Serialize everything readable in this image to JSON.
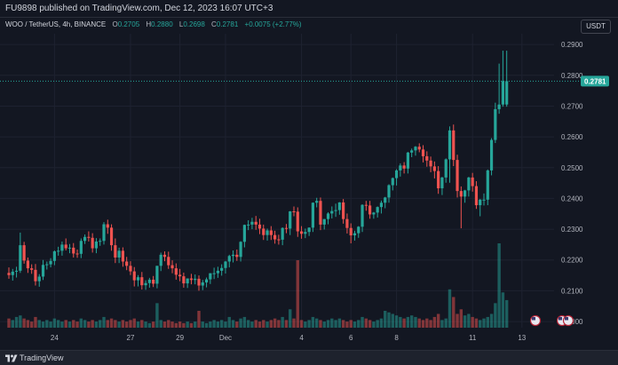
{
  "header": {
    "published_text": "FU9898 published on TradingView.com, Dec 12, 2023 16:07 UTC+3"
  },
  "legend": {
    "symbol": "WOO / TetherUS, 4h, BINANCE",
    "open_label": "O",
    "open_value": "0.2705",
    "high_label": "H",
    "high_value": "0.2880",
    "low_label": "L",
    "low_value": "0.2698",
    "close_label": "C",
    "close_value": "0.2781",
    "change_value": "+0.0075 (+2.77%)"
  },
  "currency": "USDT",
  "footer": {
    "brand": "TradingView",
    "logo_icon": "tradingview-logo-icon"
  },
  "colors": {
    "background": "#131722",
    "up": "#26a69a",
    "down": "#ef5350",
    "grid": "#1e2230",
    "axis_text": "#b2b5be",
    "price_tag": "#26a69a"
  },
  "chart_data": {
    "type": "candlestick",
    "title": "WOO / TetherUS, 4h, BINANCE",
    "xlabel": "",
    "ylabel": "",
    "ylim": [
      0.198,
      0.2935
    ],
    "grid": true,
    "y_ticks": [
      "0.2900",
      "0.2800",
      "0.2700",
      "0.2600",
      "0.2500",
      "0.2400",
      "0.2300",
      "0.2200",
      "0.2100",
      "0.2000"
    ],
    "y_tick_values": [
      0.29,
      0.28,
      0.27,
      0.26,
      0.25,
      0.24,
      0.23,
      0.22,
      0.21,
      0.2
    ],
    "x_ticks": [
      {
        "label": "24",
        "index": 12
      },
      {
        "label": "27",
        "index": 32
      },
      {
        "label": "29",
        "index": 45
      },
      {
        "label": "Dec",
        "index": 57
      },
      {
        "label": "4",
        "index": 77
      },
      {
        "label": "6",
        "index": 90
      },
      {
        "label": "8",
        "index": 102
      },
      {
        "label": "11",
        "index": 122
      },
      {
        "label": "13",
        "index": 135
      }
    ],
    "last_price": "0.2781",
    "last_price_value": 0.2781,
    "n_candles": 132,
    "candles": {
      "open": [
        0.2158,
        0.2151,
        0.2162,
        0.2165,
        0.2248,
        0.2198,
        0.2173,
        0.2168,
        0.2131,
        0.2146,
        0.2184,
        0.2186,
        0.2197,
        0.2228,
        0.223,
        0.225,
        0.2238,
        0.224,
        0.2221,
        0.222,
        0.2262,
        0.2275,
        0.2272,
        0.2238,
        0.226,
        0.2262,
        0.2316,
        0.2305,
        0.2248,
        0.2208,
        0.223,
        0.2195,
        0.2181,
        0.2163,
        0.2134,
        0.2144,
        0.2118,
        0.2125,
        0.2136,
        0.2123,
        0.2181,
        0.2217,
        0.221,
        0.2183,
        0.2173,
        0.2152,
        0.2147,
        0.2124,
        0.214,
        0.2135,
        0.2139,
        0.2117,
        0.2127,
        0.2137,
        0.2157,
        0.2157,
        0.2165,
        0.2174,
        0.2195,
        0.2213,
        0.2217,
        0.221,
        0.2259,
        0.2314,
        0.2315,
        0.2324,
        0.2315,
        0.2302,
        0.2281,
        0.2296,
        0.2281,
        0.2267,
        0.2266,
        0.2304,
        0.2302,
        0.2358,
        0.2357,
        0.2293,
        0.2285,
        0.2291,
        0.2305,
        0.2386,
        0.2392,
        0.2315,
        0.2333,
        0.2351,
        0.2359,
        0.2362,
        0.2387,
        0.2333,
        0.2304,
        0.228,
        0.2287,
        0.2308,
        0.2379,
        0.2377,
        0.2348,
        0.2354,
        0.2372,
        0.2386,
        0.2403,
        0.2443,
        0.2466,
        0.2491,
        0.2507,
        0.2497,
        0.2549,
        0.2556,
        0.2568,
        0.2559,
        0.2537,
        0.2523,
        0.2504,
        0.2489,
        0.2433,
        0.2468,
        0.2527,
        0.2621,
        0.2525,
        0.2424,
        0.2406,
        0.2426,
        0.2468,
        0.244,
        0.2378,
        0.2396,
        0.2396,
        0.2491,
        0.259,
        0.269,
        0.2705,
        0.2705
      ],
      "high": [
        0.2176,
        0.2171,
        0.2178,
        0.2289,
        0.2259,
        0.2208,
        0.2186,
        0.2187,
        0.2154,
        0.22,
        0.2195,
        0.2206,
        0.2231,
        0.2243,
        0.226,
        0.227,
        0.2252,
        0.2255,
        0.2234,
        0.227,
        0.2283,
        0.2293,
        0.2287,
        0.2271,
        0.227,
        0.2323,
        0.2331,
        0.2316,
        0.227,
        0.224,
        0.2241,
        0.221,
        0.2196,
        0.2177,
        0.2151,
        0.2161,
        0.2134,
        0.2142,
        0.2148,
        0.2181,
        0.2224,
        0.2228,
        0.2227,
        0.2199,
        0.2189,
        0.2171,
        0.2159,
        0.214,
        0.2155,
        0.2153,
        0.215,
        0.2135,
        0.2143,
        0.2157,
        0.2175,
        0.2178,
        0.2186,
        0.2197,
        0.2217,
        0.2231,
        0.2234,
        0.2261,
        0.2315,
        0.2329,
        0.2337,
        0.2343,
        0.2334,
        0.2315,
        0.2302,
        0.231,
        0.2295,
        0.2282,
        0.2306,
        0.2317,
        0.2359,
        0.2374,
        0.2371,
        0.231,
        0.2302,
        0.2306,
        0.2387,
        0.2402,
        0.2403,
        0.2333,
        0.2355,
        0.2374,
        0.2383,
        0.2388,
        0.2398,
        0.2351,
        0.2319,
        0.2295,
        0.231,
        0.2381,
        0.2392,
        0.2392,
        0.2356,
        0.2374,
        0.2393,
        0.2405,
        0.2446,
        0.2468,
        0.2495,
        0.2514,
        0.2518,
        0.2551,
        0.2562,
        0.257,
        0.2579,
        0.2573,
        0.2553,
        0.2536,
        0.252,
        0.2505,
        0.247,
        0.253,
        0.2634,
        0.264,
        0.2542,
        0.2439,
        0.2428,
        0.247,
        0.2483,
        0.2456,
        0.2398,
        0.2416,
        0.2494,
        0.2596,
        0.2711,
        0.2838,
        0.288,
        0.288
      ],
      "low": [
        0.2139,
        0.2133,
        0.2143,
        0.2158,
        0.2188,
        0.2158,
        0.2155,
        0.2117,
        0.2113,
        0.2135,
        0.2169,
        0.2176,
        0.2183,
        0.2214,
        0.2214,
        0.2231,
        0.2222,
        0.2208,
        0.2207,
        0.2206,
        0.2252,
        0.226,
        0.2224,
        0.2222,
        0.2246,
        0.225,
        0.2285,
        0.223,
        0.219,
        0.219,
        0.2178,
        0.2167,
        0.2151,
        0.2114,
        0.2114,
        0.2104,
        0.2103,
        0.211,
        0.2112,
        0.2108,
        0.2164,
        0.2196,
        0.2171,
        0.2157,
        0.2136,
        0.2131,
        0.211,
        0.2109,
        0.2121,
        0.2121,
        0.21,
        0.2102,
        0.2111,
        0.2122,
        0.2138,
        0.2142,
        0.2149,
        0.2156,
        0.2176,
        0.2192,
        0.2197,
        0.2195,
        0.2241,
        0.2297,
        0.23,
        0.2298,
        0.2284,
        0.2265,
        0.2263,
        0.2265,
        0.2253,
        0.225,
        0.2248,
        0.2287,
        0.2281,
        0.2342,
        0.2275,
        0.2269,
        0.2271,
        0.2278,
        0.2291,
        0.2371,
        0.2297,
        0.2299,
        0.2316,
        0.2335,
        0.234,
        0.2347,
        0.2318,
        0.2286,
        0.2254,
        0.2263,
        0.2272,
        0.2291,
        0.236,
        0.2334,
        0.2334,
        0.2338,
        0.2351,
        0.2368,
        0.2386,
        0.2426,
        0.2442,
        0.2471,
        0.2481,
        0.2481,
        0.2534,
        0.2539,
        0.255,
        0.2517,
        0.2503,
        0.2485,
        0.2465,
        0.2415,
        0.2411,
        0.2451,
        0.2451,
        0.2505,
        0.2403,
        0.2303,
        0.2386,
        0.2406,
        0.2422,
        0.2366,
        0.2342,
        0.2377,
        0.2378,
        0.2475,
        0.258,
        0.2675,
        0.2698,
        0.2698
      ],
      "close": [
        0.2151,
        0.2162,
        0.2165,
        0.2248,
        0.2198,
        0.2173,
        0.2168,
        0.2131,
        0.2146,
        0.2184,
        0.2186,
        0.2197,
        0.2228,
        0.223,
        0.225,
        0.2238,
        0.224,
        0.2221,
        0.222,
        0.2262,
        0.2275,
        0.2272,
        0.2238,
        0.226,
        0.2262,
        0.2316,
        0.2305,
        0.2248,
        0.2208,
        0.223,
        0.2195,
        0.2181,
        0.2163,
        0.2134,
        0.2144,
        0.2118,
        0.2125,
        0.2136,
        0.2123,
        0.2181,
        0.2217,
        0.221,
        0.2183,
        0.2173,
        0.2152,
        0.2147,
        0.2124,
        0.214,
        0.2135,
        0.2139,
        0.2117,
        0.2127,
        0.2137,
        0.2157,
        0.2157,
        0.2165,
        0.2174,
        0.2195,
        0.2213,
        0.2217,
        0.221,
        0.2259,
        0.2314,
        0.2315,
        0.2324,
        0.2315,
        0.2302,
        0.2281,
        0.2296,
        0.2281,
        0.2267,
        0.2266,
        0.2304,
        0.2302,
        0.2358,
        0.2357,
        0.2293,
        0.2285,
        0.2291,
        0.2305,
        0.2386,
        0.2392,
        0.2315,
        0.2333,
        0.2351,
        0.2359,
        0.2362,
        0.2387,
        0.2333,
        0.2304,
        0.228,
        0.2287,
        0.2308,
        0.2379,
        0.2377,
        0.2348,
        0.2354,
        0.2372,
        0.2386,
        0.2403,
        0.2443,
        0.2466,
        0.2491,
        0.2507,
        0.2497,
        0.2549,
        0.2556,
        0.2568,
        0.2559,
        0.2537,
        0.2523,
        0.2504,
        0.2489,
        0.2433,
        0.2468,
        0.2527,
        0.2621,
        0.2525,
        0.2424,
        0.2406,
        0.2426,
        0.2468,
        0.244,
        0.2378,
        0.2396,
        0.2396,
        0.2491,
        0.259,
        0.269,
        0.2705,
        0.2781,
        0.2781
      ],
      "volume": [
        0.06,
        0.05,
        0.07,
        0.08,
        0.06,
        0.05,
        0.04,
        0.07,
        0.05,
        0.04,
        0.05,
        0.04,
        0.06,
        0.05,
        0.04,
        0.05,
        0.04,
        0.05,
        0.04,
        0.06,
        0.05,
        0.04,
        0.05,
        0.04,
        0.05,
        0.07,
        0.05,
        0.06,
        0.05,
        0.04,
        0.05,
        0.04,
        0.05,
        0.06,
        0.04,
        0.05,
        0.04,
        0.03,
        0.04,
        0.16,
        0.05,
        0.04,
        0.05,
        0.04,
        0.03,
        0.04,
        0.03,
        0.04,
        0.03,
        0.04,
        0.11,
        0.04,
        0.03,
        0.04,
        0.05,
        0.04,
        0.05,
        0.04,
        0.07,
        0.05,
        0.04,
        0.06,
        0.07,
        0.05,
        0.04,
        0.05,
        0.04,
        0.05,
        0.04,
        0.05,
        0.06,
        0.05,
        0.07,
        0.05,
        0.12,
        0.06,
        0.44,
        0.05,
        0.04,
        0.05,
        0.07,
        0.06,
        0.05,
        0.04,
        0.05,
        0.06,
        0.05,
        0.06,
        0.05,
        0.04,
        0.05,
        0.04,
        0.05,
        0.07,
        0.06,
        0.05,
        0.04,
        0.05,
        0.06,
        0.11,
        0.1,
        0.09,
        0.08,
        0.07,
        0.06,
        0.07,
        0.08,
        0.07,
        0.06,
        0.05,
        0.06,
        0.05,
        0.07,
        0.09,
        0.05,
        0.06,
        0.25,
        0.2,
        0.09,
        0.12,
        0.08,
        0.09,
        0.07,
        0.06,
        0.05,
        0.06,
        0.07,
        0.09,
        0.16,
        0.55,
        0.23,
        0.18
      ]
    }
  }
}
